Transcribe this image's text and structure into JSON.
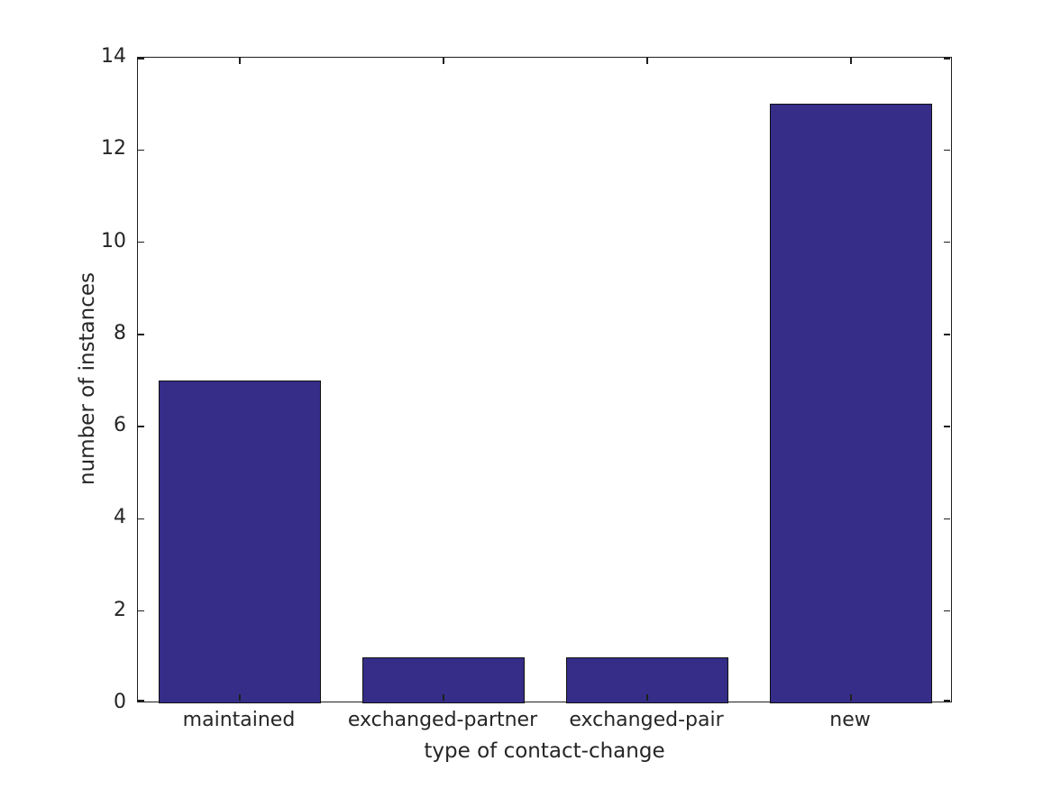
{
  "figure": {
    "background": "#ffffff"
  },
  "chart_data": {
    "type": "bar",
    "title": "",
    "xlabel": "type of contact-change",
    "ylabel": "number of instances",
    "categories": [
      "maintained",
      "exchanged-partner",
      "exchanged-pair",
      "new"
    ],
    "values": [
      7,
      1,
      1,
      13
    ],
    "ylim": [
      0,
      14
    ],
    "yticks": [
      0,
      2,
      4,
      6,
      8,
      10,
      12,
      14
    ],
    "bar_color": "#352d88",
    "bar_edge_color": "#111111",
    "axis_color": "#1f1f1f",
    "text_color": "#262626",
    "bar_width_fraction": 0.8,
    "grid": false,
    "box": true,
    "tick_direction": "in",
    "legend_position": "none"
  }
}
